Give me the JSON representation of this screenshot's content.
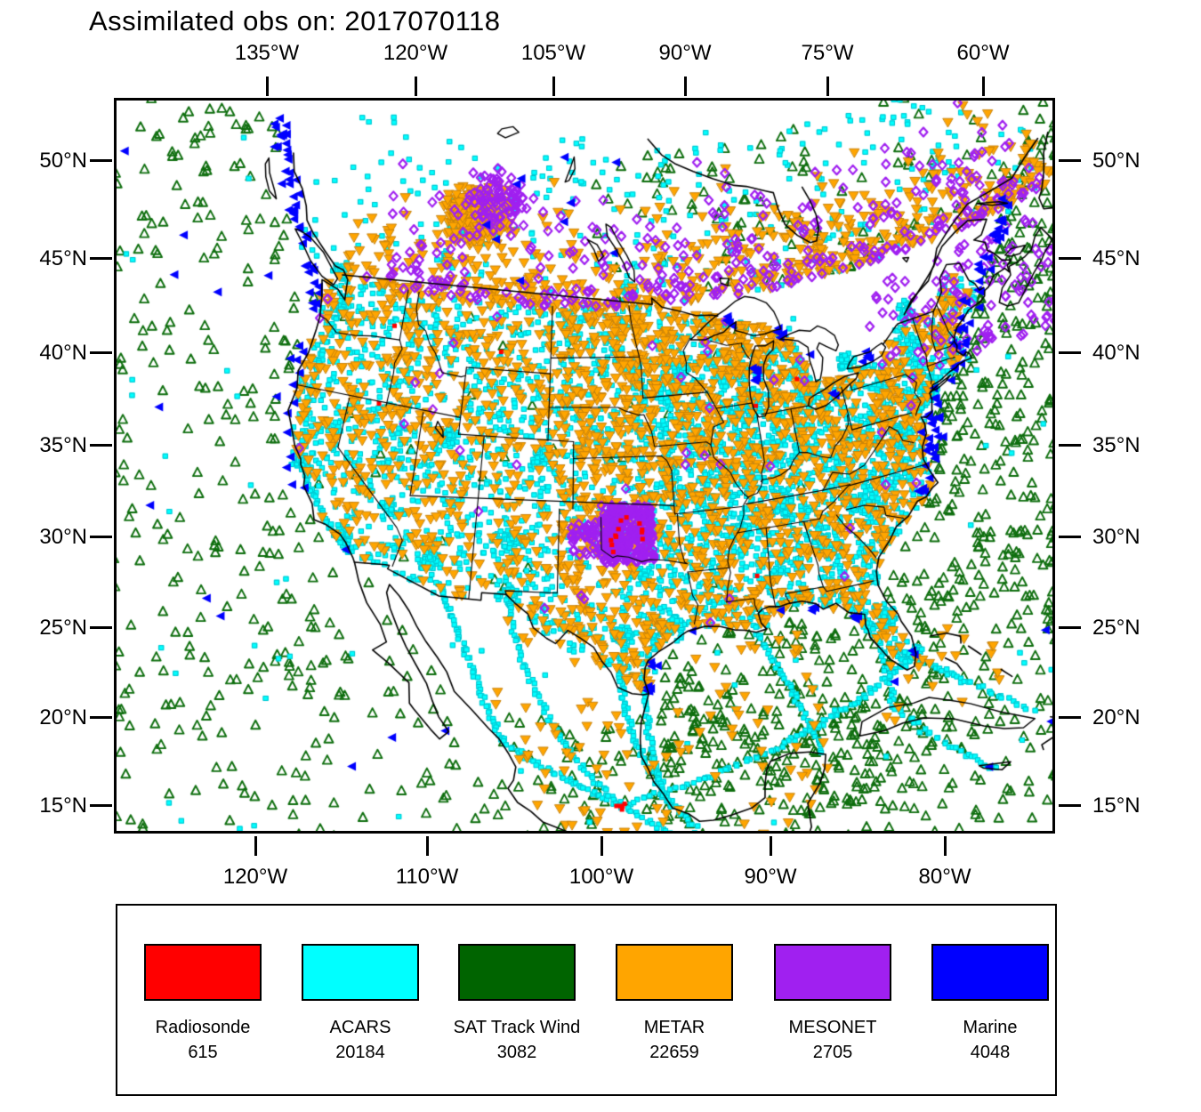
{
  "title": "Assimilated obs on: 2017070118",
  "axes": {
    "top": [
      "135°W",
      "120°W",
      "105°W",
      "90°W",
      "75°W",
      "60°W"
    ],
    "bottom": [
      "120°W",
      "110°W",
      "100°W",
      "90°W",
      "80°W"
    ],
    "left": [
      "50°N",
      "45°N",
      "40°N",
      "35°N",
      "30°N",
      "25°N",
      "20°N",
      "15°N"
    ],
    "right": [
      "50°N",
      "45°N",
      "40°N",
      "35°N",
      "30°N",
      "25°N",
      "20°N",
      "15°N"
    ]
  },
  "legend": {
    "entries": [
      {
        "label": "Radiosonde",
        "count": "615",
        "color": "#ff0000",
        "marker": "filled-square"
      },
      {
        "label": "ACARS",
        "count": "20184",
        "color": "#00ffff",
        "marker": "filled-square"
      },
      {
        "label": "SAT Track Wind",
        "count": "3082",
        "color": "#006400",
        "marker": "open-triangle-up"
      },
      {
        "label": "METAR",
        "count": "22659",
        "color": "#ffa500",
        "marker": "filled-triangle-down"
      },
      {
        "label": "MESONET",
        "count": "2705",
        "color": "#a020f0",
        "marker": "open-diamond"
      },
      {
        "label": "Marine",
        "count": "4048",
        "color": "#0000ff",
        "marker": "filled-triangle-left"
      }
    ]
  },
  "chart_data": {
    "type": "scatter",
    "title": "Assimilated obs on: 2017070118",
    "series": [
      {
        "name": "Radiosonde",
        "count": 615,
        "color": "#ff0000",
        "marker": "filled-square",
        "distribution": "sparse; cluster over Oklahoma and central Mexico"
      },
      {
        "name": "ACARS",
        "count": 20184,
        "color": "#00ffff",
        "marker": "filled-square",
        "distribution": "dense over CONUS, airport hubs, flight-track arcs over Mexico, Gulf and Caribbean"
      },
      {
        "name": "SAT Track Wind",
        "count": 3082,
        "color": "#006400",
        "marker": "open-triangle-up",
        "distribution": "oceans: Pacific, Atlantic, Gulf, Caribbean, southern Mexico, eastern Canada"
      },
      {
        "name": "METAR",
        "count": 22659,
        "color": "#ffa500",
        "marker": "filled-triangle-down",
        "distribution": "dense over CONUS and southern Canada band"
      },
      {
        "name": "MESONET",
        "count": 2705,
        "color": "#a020f0",
        "marker": "open-diamond",
        "distribution": "dense Oklahoma cluster, southern Canada band, northeast"
      },
      {
        "name": "Marine",
        "count": 4048,
        "color": "#0000ff",
        "marker": "filled-triangle-left",
        "distribution": "coastal Pacific/Atlantic/Gulf and Great Lakes"
      }
    ],
    "extent": {
      "lat_ticks": [
        50,
        45,
        40,
        35,
        30,
        25,
        20,
        15
      ],
      "lon_ticks_top": [
        135,
        120,
        105,
        90,
        75,
        60
      ],
      "lon_ticks_bottom": [
        120,
        110,
        100,
        90,
        80
      ]
    },
    "projection": "conic (meridians converge upward)",
    "legend_position": "bottom",
    "grid": false
  }
}
